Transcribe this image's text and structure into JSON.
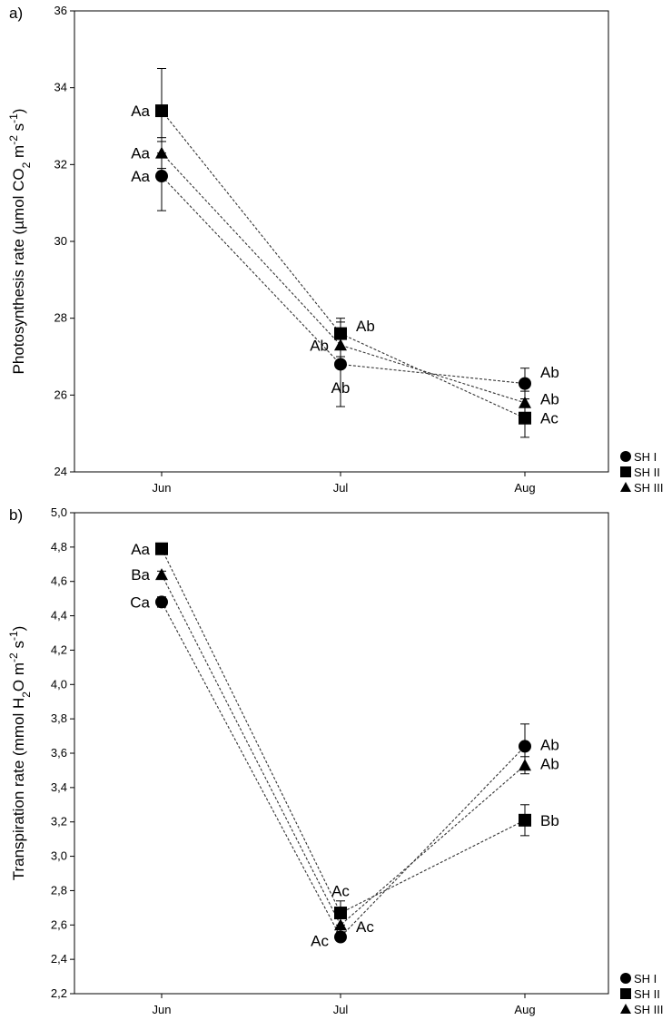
{
  "chart_data": [
    {
      "panel_label": "a)",
      "type": "line",
      "categories": [
        "Jun",
        "Jul",
        "Aug"
      ],
      "ylabel_parts": [
        "Photosynthesis rate (µmol CO",
        "2",
        " m",
        "-2",
        " s",
        "-1",
        ")"
      ],
      "ylim": [
        24,
        36
      ],
      "yticks": [
        "24",
        "26",
        "28",
        "30",
        "32",
        "34",
        "36"
      ],
      "grid": false,
      "legend_position": "bottom-right outside",
      "series": [
        {
          "name": "SH I",
          "marker": "circle",
          "values": [
            31.7,
            26.8,
            26.3
          ],
          "errors": [
            0.9,
            1.1,
            0.4
          ]
        },
        {
          "name": "SH II",
          "marker": "square",
          "values": [
            33.4,
            27.6,
            25.4
          ],
          "errors": [
            1.1,
            0.4,
            0.5
          ]
        },
        {
          "name": "SH III",
          "marker": "triangle",
          "values": [
            32.3,
            27.3,
            25.8
          ],
          "errors": [
            0.4,
            0.3,
            0.3
          ]
        }
      ],
      "annotations": [
        {
          "text": "Aa",
          "category": "Jun",
          "y": 33.4,
          "side": "left"
        },
        {
          "text": "Aa",
          "category": "Jun",
          "y": 32.3,
          "side": "left"
        },
        {
          "text": "Aa",
          "category": "Jun",
          "y": 31.7,
          "side": "left"
        },
        {
          "text": "Ab",
          "category": "Jul",
          "y": 27.8,
          "side": "right"
        },
        {
          "text": "Ab",
          "category": "Jul",
          "y": 27.3,
          "side": "left"
        },
        {
          "text": "Ab",
          "category": "Jul",
          "y": 26.2,
          "side": "below"
        },
        {
          "text": "Ab",
          "category": "Aug",
          "y": 26.6,
          "side": "right"
        },
        {
          "text": "Ab",
          "category": "Aug",
          "y": 25.9,
          "side": "right"
        },
        {
          "text": "Ac",
          "category": "Aug",
          "y": 25.4,
          "side": "right"
        }
      ]
    },
    {
      "panel_label": "b)",
      "type": "line",
      "categories": [
        "Jun",
        "Jul",
        "Aug"
      ],
      "ylabel_parts": [
        "Transpiration rate (mmol H",
        "2",
        "O m",
        "-2",
        " s",
        "-1",
        ")"
      ],
      "ylim": [
        2.2,
        5.0
      ],
      "yticks": [
        "2,2",
        "2,4",
        "2,6",
        "2,8",
        "3,0",
        "3,2",
        "3,4",
        "3,6",
        "3,8",
        "4,0",
        "4,2",
        "4,4",
        "4,6",
        "4,8",
        "5,0"
      ],
      "grid": false,
      "legend_position": "bottom-right outside",
      "series": [
        {
          "name": "SH I",
          "marker": "circle",
          "values": [
            4.48,
            2.53,
            3.64
          ],
          "errors": [
            0.03,
            0.02,
            0.13
          ]
        },
        {
          "name": "SH II",
          "marker": "square",
          "values": [
            4.79,
            2.67,
            3.21
          ],
          "errors": [
            0.02,
            0.07,
            0.09
          ]
        },
        {
          "name": "SH III",
          "marker": "triangle",
          "values": [
            4.64,
            2.6,
            3.53
          ],
          "errors": [
            0.02,
            0.04,
            0.05
          ]
        }
      ],
      "annotations": [
        {
          "text": "Aa",
          "category": "Jun",
          "y": 4.79,
          "side": "left"
        },
        {
          "text": "Ba",
          "category": "Jun",
          "y": 4.64,
          "side": "left"
        },
        {
          "text": "Ca",
          "category": "Jun",
          "y": 4.48,
          "side": "left"
        },
        {
          "text": "Ac",
          "category": "Jul",
          "y": 2.8,
          "side": "above"
        },
        {
          "text": "Ac",
          "category": "Jul",
          "y": 2.59,
          "side": "right"
        },
        {
          "text": "Ac",
          "category": "Jul",
          "y": 2.51,
          "side": "left"
        },
        {
          "text": "Ab",
          "category": "Aug",
          "y": 3.65,
          "side": "right"
        },
        {
          "text": "Ab",
          "category": "Aug",
          "y": 3.54,
          "side": "right"
        },
        {
          "text": "Bb",
          "category": "Aug",
          "y": 3.21,
          "side": "right"
        }
      ]
    }
  ]
}
